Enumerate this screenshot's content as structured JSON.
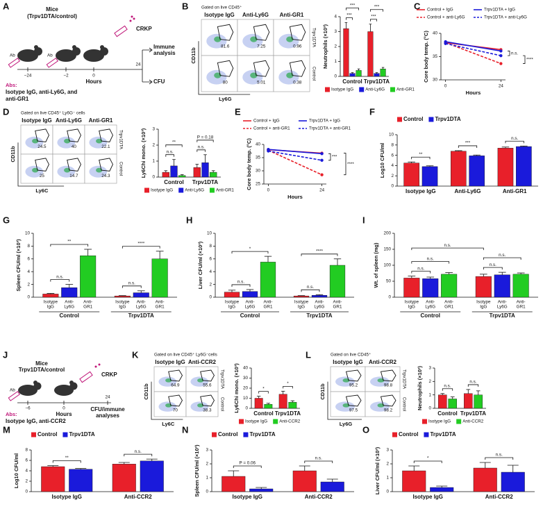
{
  "panel_labels": [
    "A",
    "B",
    "C",
    "D",
    "E",
    "F",
    "G",
    "H",
    "I",
    "J",
    "K",
    "L",
    "M",
    "N",
    "O"
  ],
  "diagrams": [
    {
      "mice": "Mice",
      "mice_sub": "(Trpv1DTA/control)",
      "ab": "Ab",
      "infection": "CRKP",
      "times": [
        "−24",
        "−2",
        "0",
        "24"
      ],
      "time_unit": "Hours",
      "outcomes": [
        [
          "Immune",
          "analysis"
        ],
        [
          "CFU"
        ]
      ],
      "abs_title": "Abs:",
      "abs_text": [
        "Isotype IgG, anti-Ly6G, and",
        "anti-GR1"
      ]
    },
    {
      "mice": "Mice",
      "mice_sub": "Trpv1DTA/control",
      "ab": "Ab",
      "infection": "CRKP",
      "times": [
        "−6",
        "0",
        "24"
      ],
      "time_unit": "Hours",
      "outcomes": [
        [
          "CFU/immune",
          "analyses"
        ]
      ],
      "abs_title": "Abs:",
      "abs_text": [
        "Isotype IgG, anti-CCR2"
      ]
    }
  ],
  "flow": [
    {
      "gate": "Gated on live CD45⁺",
      "columns": [
        "Isotype IgG",
        "Anti-Ly6G",
        "Anti-GR1"
      ],
      "rows": [
        "Trpv1DTA",
        "Control"
      ],
      "numbers": [
        [
          81.6,
          7.25,
          0.96
        ],
        [
          80,
          5.01,
          0.38
        ]
      ],
      "x_label": "Ly6G",
      "y_label": "CD11b"
    },
    {
      "gate": "Gated on live CD45⁺ Ly6G⁻ cells",
      "columns": [
        "Isotype IgG",
        "Anti-Ly6G",
        "Anti-GR1"
      ],
      "rows": [
        "Trpv1DTA",
        "Control"
      ],
      "numbers": [
        [
          24.5,
          40,
          22.1
        ],
        [
          25,
          14.7,
          24.3
        ]
      ],
      "x_label": "Ly6C",
      "y_label": "CD11b"
    },
    {
      "gate": "Gated on live CD45⁺ Ly6G⁻cells",
      "columns": [
        "Isotype IgG",
        "Anti-CCR2"
      ],
      "rows": [
        "Trpv1DTA",
        "Control"
      ],
      "numbers": [
        [
          64.9,
          55.6
        ],
        [
          70,
          38.3
        ]
      ],
      "x_label": "Ly6C",
      "y_label": "CD11b"
    },
    {
      "gate": "Gated on live CD45⁺",
      "columns": [
        "Isotype IgG",
        "Anti-CCR2"
      ],
      "rows": [
        "Trpv1DTA",
        "Control"
      ],
      "numbers": [
        [
          95.2,
          98.8
        ],
        [
          97.5,
          98.2
        ]
      ],
      "x_label": "Ly6G",
      "y_label": "CD11b"
    }
  ],
  "chart_data": [
    {
      "type": "bar",
      "y_label": "Neutrophils (×10³)",
      "categories": [
        "Control",
        "Trpv1DTA"
      ],
      "ylim": [
        0,
        4
      ],
      "yticks": [
        0,
        1,
        2,
        3,
        4
      ],
      "legend": "bottom",
      "series": [
        {
          "name": "Isotype IgG",
          "color": "#e8202a",
          "values": [
            3.2,
            3.0
          ],
          "errors": [
            0.4,
            0.5
          ]
        },
        {
          "name": "Anti-Ly6G",
          "color": "#1a1adb",
          "values": [
            0.2,
            0.2
          ],
          "errors": [
            0.05,
            0.05
          ]
        },
        {
          "name": "Anti-GR1",
          "color": "#22cc22",
          "values": [
            0.4,
            0.5
          ],
          "errors": [
            0.1,
            0.1
          ]
        }
      ],
      "annotations": [
        {
          "label": "***",
          "bars": [
            0,
            1
          ]
        },
        {
          "label": "***",
          "bars": [
            0,
            2
          ]
        },
        {
          "label": "***",
          "bars": [
            3,
            4
          ]
        },
        {
          "label": "***",
          "bars": [
            3,
            5
          ]
        }
      ]
    },
    {
      "type": "line",
      "y_label": "Core body temp. (°C)",
      "x_label": "Hours",
      "x": [
        0,
        24
      ],
      "xlim": [
        -2,
        26
      ],
      "xticks": [
        0,
        24
      ],
      "ylim": [
        30,
        40
      ],
      "yticks": [
        30,
        35,
        40
      ],
      "series": [
        {
          "name": "Control + IgG",
          "color": "#e8202a",
          "dash": false,
          "values": [
            38,
            36.5
          ]
        },
        {
          "name": "Control + anti-Ly6G",
          "color": "#e8202a",
          "dash": true,
          "values": [
            38,
            33.5
          ]
        },
        {
          "name": "Trpv1DTA + IgG",
          "color": "#1a1adb",
          "dash": false,
          "values": [
            38.2,
            36.2
          ]
        },
        {
          "name": "Trpv1DTA + anti-Ly6G",
          "color": "#1a1adb",
          "dash": true,
          "values": [
            37.8,
            35.2
          ]
        }
      ],
      "annotations": [
        {
          "label": "n.s.",
          "series": [
            2,
            3
          ]
        },
        {
          "label": "****",
          "series": [
            1,
            3
          ]
        }
      ]
    },
    {
      "type": "bar",
      "y_label": "Ly6Chi mono. (×10³)",
      "categories": [
        "Control",
        "Trpv1DTA"
      ],
      "ylim": [
        0,
        3
      ],
      "yticks": [
        0,
        1,
        2,
        3
      ],
      "legend": "bottom",
      "series": [
        {
          "name": "Isotype IgG",
          "color": "#e8202a",
          "values": [
            0.3,
            0.6
          ],
          "errors": [
            0.1,
            0.2
          ]
        },
        {
          "name": "Anti-Ly6G",
          "color": "#1a1adb",
          "values": [
            0.7,
            0.9
          ],
          "errors": [
            0.4,
            0.5
          ]
        },
        {
          "name": "Anti-GR1",
          "color": "#22cc22",
          "values": [
            0.1,
            0.3
          ],
          "errors": [
            0.05,
            0.1
          ]
        }
      ],
      "annotations": [
        {
          "label": "n.s.",
          "bars": [
            0,
            1
          ]
        },
        {
          "label": "**",
          "bars": [
            0,
            2
          ]
        },
        {
          "label": "n.s.",
          "bars": [
            3,
            4
          ]
        },
        {
          "label": "P = 0.18",
          "bars": [
            3,
            5
          ]
        }
      ]
    },
    {
      "type": "line",
      "y_label": "Core body temp. (°C)",
      "x_label": "Hours",
      "x": [
        0,
        24
      ],
      "xlim": [
        -2,
        26
      ],
      "xticks": [
        0,
        24
      ],
      "ylim": [
        25,
        40
      ],
      "yticks": [
        25,
        30,
        35,
        40
      ],
      "series": [
        {
          "name": "Control + IgG",
          "color": "#e8202a",
          "dash": false,
          "values": [
            38,
            36.7
          ]
        },
        {
          "name": "Control + anti-GR1",
          "color": "#e8202a",
          "dash": true,
          "values": [
            37.8,
            28.5
          ]
        },
        {
          "name": "Trpv1DTA + IgG",
          "color": "#1a1adb",
          "dash": false,
          "values": [
            38.1,
            36.5
          ]
        },
        {
          "name": "Trpv1DTA + anti-GR1",
          "color": "#1a1adb",
          "dash": true,
          "values": [
            37.5,
            34
          ]
        }
      ],
      "annotations": [
        {
          "label": "***",
          "series": [
            2,
            3
          ]
        },
        {
          "label": "****",
          "series": [
            0,
            1
          ]
        }
      ]
    },
    {
      "type": "bar",
      "y_label": "Log10 CFU/ml",
      "categories": [
        "Isotype IgG",
        "Anti-Ly6G",
        "Anti-GR1"
      ],
      "ylim": [
        0,
        10
      ],
      "yticks": [
        0,
        2,
        4,
        6,
        8,
        10
      ],
      "legend": "top",
      "series": [
        {
          "name": "Control",
          "color": "#e8202a",
          "values": [
            4.5,
            6.8,
            7.4
          ],
          "errors": [
            0.2,
            0.1,
            0.2
          ]
        },
        {
          "name": "Trpv1DTA",
          "color": "#1a1adb",
          "values": [
            3.8,
            5.9,
            7.7
          ],
          "errors": [
            0.15,
            0.15,
            0.1
          ]
        }
      ],
      "annotations": [
        {
          "label": "**",
          "bars": [
            0,
            1
          ]
        },
        {
          "label": "***",
          "bars": [
            2,
            3
          ]
        },
        {
          "label": "n.s.",
          "bars": [
            4,
            5
          ]
        }
      ]
    },
    {
      "type": "bar",
      "y_label": "Spleen CFU/ml (×10³)",
      "categories": [
        "Control",
        "Trpv1DTA"
      ],
      "bar_labels": [
        [
          "Isotype",
          "IgG"
        ],
        [
          "Anti-",
          "Ly6G"
        ],
        [
          "Anti-",
          "GR1"
        ]
      ],
      "ylim": [
        0,
        10
      ],
      "yticks": [
        0,
        2,
        4,
        6,
        8,
        10
      ],
      "series": [
        {
          "color": "#e8202a",
          "values": [
            0.5,
            0.2
          ],
          "errors": [
            0.1,
            0.05
          ]
        },
        {
          "color": "#1a1adb",
          "values": [
            1.5,
            0.7
          ],
          "errors": [
            0.5,
            0.3
          ]
        },
        {
          "color": "#22cc22",
          "values": [
            6.5,
            6.0
          ],
          "errors": [
            1.0,
            1.2
          ]
        }
      ],
      "annotations": [
        {
          "label": "n.s.",
          "bars": [
            0,
            1
          ]
        },
        {
          "label": "**",
          "bars": [
            0,
            2
          ]
        },
        {
          "label": "n.s.",
          "bars": [
            3,
            4
          ]
        },
        {
          "label": "****",
          "bars": [
            3,
            5
          ]
        }
      ]
    },
    {
      "type": "bar",
      "y_label": "Liver CFU/ml (×10³)",
      "categories": [
        "Control",
        "Trpv1DTA"
      ],
      "bar_labels": [
        [
          "Isotype",
          "IgG"
        ],
        [
          "Anti-",
          "Ly6G"
        ],
        [
          "Anti-",
          "GR1"
        ]
      ],
      "ylim": [
        0,
        10
      ],
      "yticks": [
        0,
        2,
        4,
        6,
        8,
        10
      ],
      "series": [
        {
          "color": "#e8202a",
          "values": [
            0.8,
            0.2
          ],
          "errors": [
            0.3,
            0.05
          ]
        },
        {
          "color": "#1a1adb",
          "values": [
            0.9,
            0.3
          ],
          "errors": [
            0.3,
            0.1
          ]
        },
        {
          "color": "#22cc22",
          "values": [
            5.5,
            5.0
          ],
          "errors": [
            0.9,
            1.0
          ]
        }
      ],
      "annotations": [
        {
          "label": "n.s.",
          "bars": [
            0,
            1
          ]
        },
        {
          "label": "*",
          "bars": [
            0,
            2
          ]
        },
        {
          "label": "n.s.",
          "bars": [
            3,
            4
          ]
        },
        {
          "label": "****",
          "bars": [
            3,
            5
          ]
        }
      ]
    },
    {
      "type": "bar",
      "y_label": "Wt. of spleen (mg)",
      "categories": [
        "Control",
        "Trpv1DTA"
      ],
      "bar_labels": [
        [
          "Isotype",
          "IgG"
        ],
        [
          "Anti-",
          "Ly6G"
        ],
        [
          "Anti-",
          "GR1"
        ]
      ],
      "ylim": [
        0,
        200
      ],
      "yticks": [
        0,
        50,
        100,
        150,
        200
      ],
      "series": [
        {
          "color": "#e8202a",
          "values": [
            60,
            65
          ],
          "errors": [
            6,
            7
          ]
        },
        {
          "color": "#1a1adb",
          "values": [
            58,
            70
          ],
          "errors": [
            5,
            8
          ]
        },
        {
          "color": "#22cc22",
          "values": [
            72,
            72
          ],
          "errors": [
            5,
            4
          ]
        }
      ],
      "annotations": [
        {
          "label": "n.s.",
          "bars": [
            0,
            1
          ]
        },
        {
          "label": "n.s.",
          "bars": [
            0,
            2
          ]
        },
        {
          "label": "n.s.",
          "bars": [
            3,
            4
          ]
        },
        {
          "label": "n.s.",
          "bars": [
            3,
            5
          ]
        },
        {
          "label": "n.s.",
          "bars": [
            0,
            3
          ]
        }
      ]
    },
    {
      "type": "bar",
      "y_label": "Ly6Chi mono. (×10³)",
      "categories": [
        "Control",
        "Trpv1DTA"
      ],
      "ylim": [
        0,
        40
      ],
      "yticks": [
        0,
        10,
        20,
        30,
        40
      ],
      "legend": "bottom",
      "series": [
        {
          "name": "Isotype IgG",
          "color": "#e8202a",
          "values": [
            10,
            14
          ],
          "errors": [
            2,
            3
          ]
        },
        {
          "name": "Anti-CCR2",
          "color": "#22cc22",
          "values": [
            4,
            6
          ],
          "errors": [
            1,
            1.5
          ]
        }
      ],
      "annotations": [
        {
          "label": "*",
          "bars": [
            0,
            1
          ]
        },
        {
          "label": "*",
          "bars": [
            2,
            3
          ]
        }
      ]
    },
    {
      "type": "bar",
      "y_label": "Neutrophils (×10³)",
      "categories": [
        "Control",
        "Trpv1DTA"
      ],
      "ylim": [
        0,
        3
      ],
      "yticks": [
        0,
        1,
        2,
        3
      ],
      "legend": "bottom",
      "series": [
        {
          "name": "Isotype IgG",
          "color": "#e8202a",
          "values": [
            1.0,
            1.1
          ],
          "errors": [
            0.1,
            0.3
          ]
        },
        {
          "name": "Anti-CCR2",
          "color": "#22cc22",
          "values": [
            0.7,
            1.0
          ],
          "errors": [
            0.15,
            0.3
          ]
        }
      ],
      "annotations": [
        {
          "label": "n.s.",
          "bars": [
            0,
            1
          ]
        },
        {
          "label": "n.s.",
          "bars": [
            2,
            3
          ]
        }
      ]
    },
    {
      "type": "bar",
      "y_label": "Log10 CFU/ml",
      "categories": [
        "Isotype IgG",
        "Anti-CCR2"
      ],
      "ylim": [
        0,
        8
      ],
      "yticks": [
        0,
        2,
        4,
        6,
        8
      ],
      "legend": "top",
      "series": [
        {
          "name": "Control",
          "color": "#e8202a",
          "values": [
            4.8,
            5.3
          ],
          "errors": [
            0.2,
            0.3
          ]
        },
        {
          "name": "Trpv1DTA",
          "color": "#1a1adb",
          "values": [
            4.3,
            5.9
          ],
          "errors": [
            0.15,
            0.35
          ]
        }
      ],
      "annotations": [
        {
          "label": "**",
          "bars": [
            0,
            1
          ]
        },
        {
          "label": "n.s.",
          "bars": [
            2,
            3
          ]
        }
      ]
    },
    {
      "type": "bar",
      "y_label": "Spleen CFU/ml (×10³)",
      "categories": [
        "Isotype IgG",
        "Anti-CCR2"
      ],
      "ylim": [
        0,
        3
      ],
      "yticks": [
        0,
        1,
        2,
        3
      ],
      "legend": "top",
      "series": [
        {
          "name": "Control",
          "color": "#e8202a",
          "values": [
            1.1,
            1.5
          ],
          "errors": [
            0.4,
            0.35
          ]
        },
        {
          "name": "Trpv1DTA",
          "color": "#1a1adb",
          "values": [
            0.2,
            0.7
          ],
          "errors": [
            0.1,
            0.2
          ]
        }
      ],
      "annotations": [
        {
          "label": "P = 0.06",
          "bars": [
            0,
            1
          ]
        },
        {
          "label": "n.s.",
          "bars": [
            2,
            3
          ]
        }
      ]
    },
    {
      "type": "bar",
      "y_label": "Liver CFU/ml (×10³)",
      "categories": [
        "Isotype IgG",
        "Anti-CCR2"
      ],
      "ylim": [
        0,
        3
      ],
      "yticks": [
        0,
        1,
        2,
        3
      ],
      "legend": "top",
      "series": [
        {
          "name": "Control",
          "color": "#e8202a",
          "values": [
            1.5,
            1.7
          ],
          "errors": [
            0.35,
            0.4
          ]
        },
        {
          "name": "Trpv1DTA",
          "color": "#1a1adb",
          "values": [
            0.3,
            1.4
          ],
          "errors": [
            0.1,
            0.5
          ]
        }
      ],
      "annotations": [
        {
          "label": "*",
          "bars": [
            0,
            1
          ]
        },
        {
          "label": "n.s.",
          "bars": [
            2,
            3
          ]
        }
      ]
    }
  ]
}
